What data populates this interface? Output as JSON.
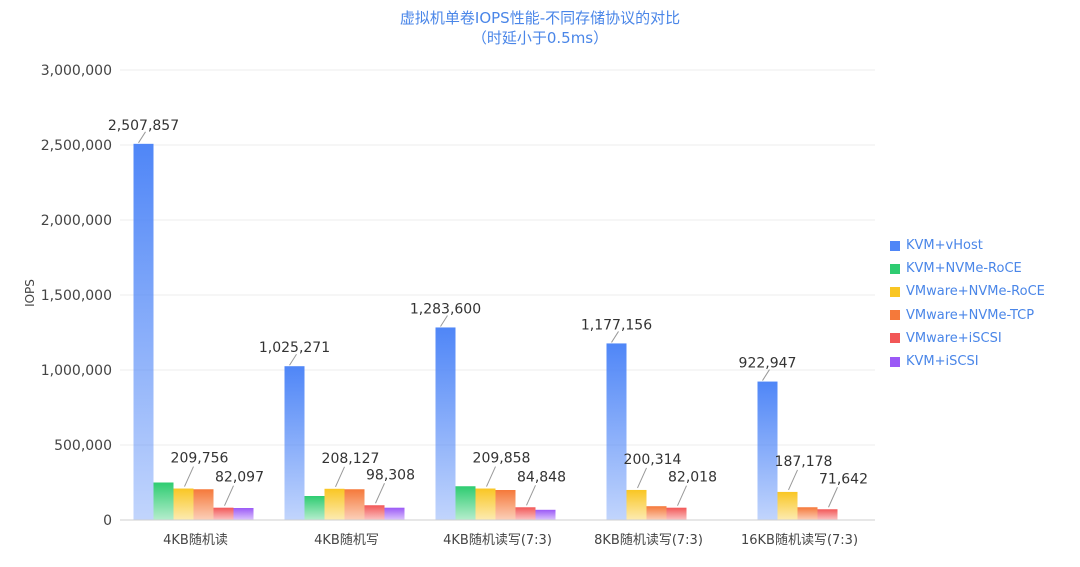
{
  "chart_data": {
    "type": "bar",
    "title": "虚拟机单卷IOPS性能-不同存储协议的对比",
    "subtitle": "（时延小于0.5ms）",
    "xlabel": "",
    "ylabel": "IOPS",
    "ylim": [
      0,
      3000000
    ],
    "yticks": [
      "0",
      "500,000",
      "1,000,000",
      "1,500,000",
      "2,000,000",
      "2,500,000",
      "3,000,000"
    ],
    "grid": true,
    "legend_position": "right",
    "categories": [
      "4KB随机读",
      "4KB随机写",
      "4KB随机读写(7:3)",
      "8KB随机读写(7:3)",
      "16KB随机读写(7:3)"
    ],
    "series": [
      {
        "name": "KVM+vHost",
        "color": "#4f86f7",
        "values": [
          2507857,
          1025271,
          1283600,
          1177156,
          922947
        ],
        "labels": [
          "2,507,857",
          "1,025,271",
          "1,283,600",
          "1,177,156",
          "922,947"
        ]
      },
      {
        "name": "KVM+NVMe-RoCE",
        "color": "#2ecc71",
        "values": [
          250000,
          160000,
          225000,
          null,
          null
        ],
        "labels": [
          "",
          "",
          "",
          "",
          ""
        ]
      },
      {
        "name": "VMware+NVMe-RoCE",
        "color": "#f9c623",
        "values": [
          209756,
          208127,
          209858,
          200314,
          187178
        ],
        "labels": [
          "209,756",
          "208,127",
          "209,858",
          "200,314",
          "187,178"
        ]
      },
      {
        "name": "VMware+NVMe-TCP",
        "color": "#f5793a",
        "values": [
          205000,
          205000,
          200000,
          92000,
          85000
        ],
        "labels": [
          "",
          "",
          "",
          "",
          ""
        ]
      },
      {
        "name": "VMware+iSCSI",
        "color": "#f25757",
        "values": [
          82097,
          98308,
          84848,
          82018,
          71642
        ],
        "labels": [
          "82,097",
          "98,308",
          "84,848",
          "82,018",
          "71,642"
        ]
      },
      {
        "name": "KVM+iSCSI",
        "color": "#9b59f6",
        "values": [
          80000,
          82000,
          68000,
          null,
          null
        ],
        "labels": [
          "",
          "",
          "",
          "",
          ""
        ]
      }
    ]
  }
}
